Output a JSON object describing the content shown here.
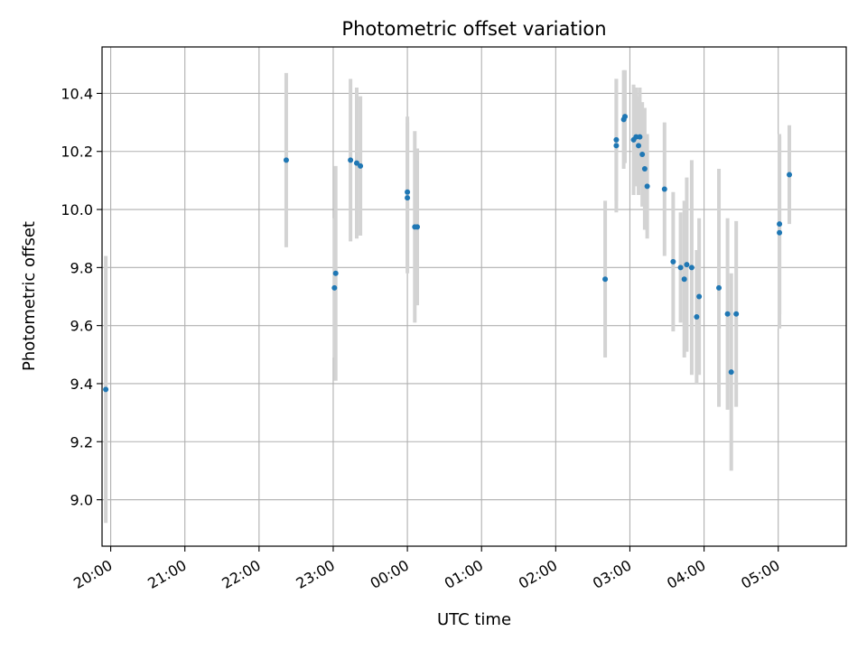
{
  "chart_data": {
    "type": "scatter",
    "title": "Photometric offset variation",
    "xlabel": "UTC time",
    "ylabel": "Photometric offset",
    "x_tick_labels": [
      "20:00",
      "21:00",
      "22:00",
      "23:00",
      "00:00",
      "01:00",
      "02:00",
      "03:00",
      "04:00",
      "05:00"
    ],
    "y_ticks": [
      9.0,
      9.2,
      9.4,
      9.6,
      9.8,
      10.0,
      10.2,
      10.4
    ],
    "ylim": [
      8.84,
      10.56
    ],
    "xlim": [
      "19:53",
      "05:55"
    ],
    "grid": true,
    "colors": {
      "points": "#1f77b4",
      "error_bars": "#d3d3d3",
      "grid": "#b0b0b0"
    },
    "series": [
      {
        "points": [
          {
            "x": "19:56",
            "y": 9.38,
            "err": 0.46
          },
          {
            "x": "22:22",
            "y": 10.17,
            "err": 0.3
          },
          {
            "x": "23:01",
            "y": 9.73,
            "err": 0.24
          },
          {
            "x": "23:02",
            "y": 9.78,
            "err": 0.37
          },
          {
            "x": "23:14",
            "y": 10.17,
            "err": 0.28
          },
          {
            "x": "23:19",
            "y": 10.16,
            "err": 0.26
          },
          {
            "x": "23:22",
            "y": 10.15,
            "err": 0.24
          },
          {
            "x": "00:00",
            "y": 10.06,
            "err": 0.26
          },
          {
            "x": "00:00",
            "y": 10.04,
            "err": 0.26
          },
          {
            "x": "00:06",
            "y": 9.94,
            "err": 0.33
          },
          {
            "x": "00:08",
            "y": 9.94,
            "err": 0.27
          },
          {
            "x": "02:40",
            "y": 9.76,
            "err": 0.27
          },
          {
            "x": "02:49",
            "y": 10.24,
            "err": 0.21
          },
          {
            "x": "02:49",
            "y": 10.22,
            "err": 0.23
          },
          {
            "x": "02:55",
            "y": 10.31,
            "err": 0.17
          },
          {
            "x": "02:56",
            "y": 10.32,
            "err": 0.16
          },
          {
            "x": "03:03",
            "y": 10.24,
            "err": 0.19
          },
          {
            "x": "03:05",
            "y": 10.25,
            "err": 0.17
          },
          {
            "x": "03:07",
            "y": 10.22,
            "err": 0.17
          },
          {
            "x": "03:08",
            "y": 10.25,
            "err": 0.17
          },
          {
            "x": "03:10",
            "y": 10.19,
            "err": 0.18
          },
          {
            "x": "03:12",
            "y": 10.14,
            "err": 0.21
          },
          {
            "x": "03:14",
            "y": 10.08,
            "err": 0.18
          },
          {
            "x": "03:28",
            "y": 10.07,
            "err": 0.23
          },
          {
            "x": "03:35",
            "y": 9.82,
            "err": 0.24
          },
          {
            "x": "03:41",
            "y": 9.8,
            "err": 0.19
          },
          {
            "x": "03:44",
            "y": 9.76,
            "err": 0.27
          },
          {
            "x": "03:46",
            "y": 9.81,
            "err": 0.3
          },
          {
            "x": "03:50",
            "y": 9.8,
            "err": 0.37
          },
          {
            "x": "03:54",
            "y": 9.63,
            "err": 0.23
          },
          {
            "x": "03:56",
            "y": 9.7,
            "err": 0.27
          },
          {
            "x": "04:12",
            "y": 9.73,
            "err": 0.41
          },
          {
            "x": "04:19",
            "y": 9.64,
            "err": 0.33
          },
          {
            "x": "04:22",
            "y": 9.44,
            "err": 0.34
          },
          {
            "x": "04:26",
            "y": 9.64,
            "err": 0.32
          },
          {
            "x": "05:01",
            "y": 9.95,
            "err": 0.31
          },
          {
            "x": "05:01",
            "y": 9.92,
            "err": 0.33
          },
          {
            "x": "05:09",
            "y": 10.12,
            "err": 0.17
          }
        ]
      }
    ]
  }
}
